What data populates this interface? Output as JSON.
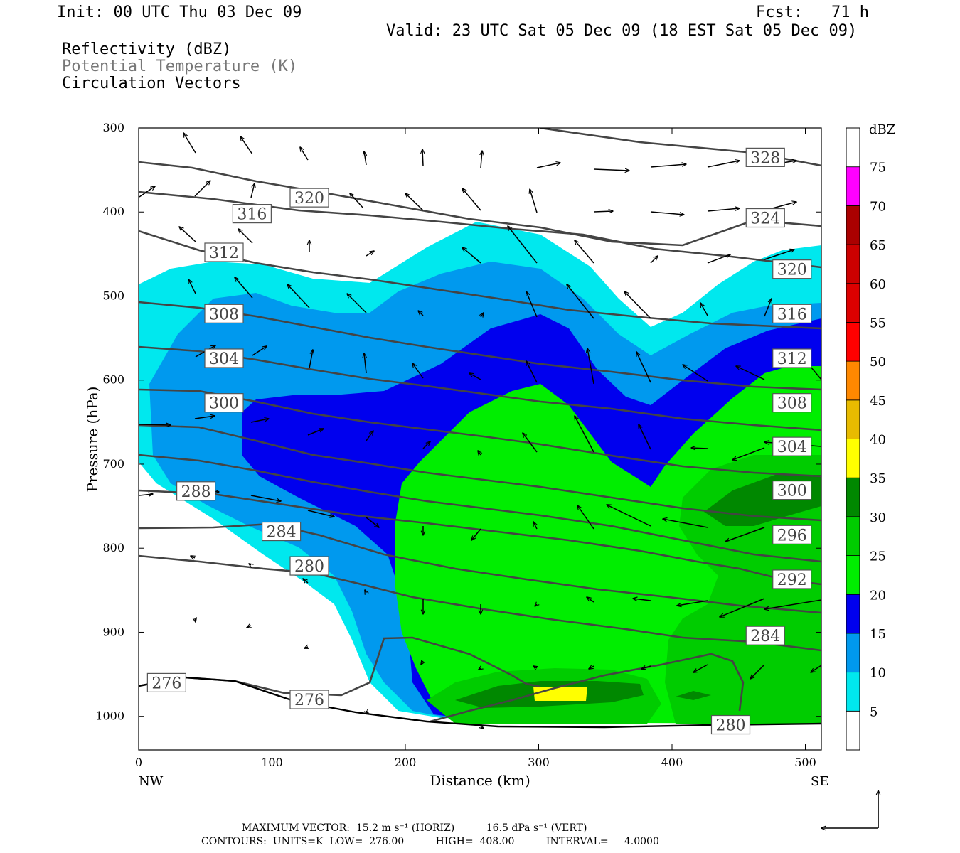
{
  "header": {
    "init": "Init: 00 UTC Thu 03 Dec 09",
    "fcst": "Fcst:   71 h",
    "valid": "Valid: 23 UTC Sat 05 Dec 09 (18 EST Sat 05 Dec 09)",
    "field1": "Reflectivity (dBZ)",
    "field2": "Potential Temperature (K)",
    "field3": "Circulation Vectors"
  },
  "footer": {
    "line1": "MAXIMUM VECTOR:  15.2 m s⁻¹ (HORIZ)          16.5 dPa s⁻¹ (VERT)",
    "line2": "CONTOURS:  UNITS=K  LOW=  276.00          HIGH=  408.00          INTERVAL=     4.0000"
  },
  "colors": {
    "refl_5": "#00e8ee",
    "refl_10": "#0099ee",
    "refl_15": "#0000ee",
    "refl_20": "#00ee00",
    "refl_25": "#00cc00",
    "refl_30": "#008800",
    "refl_35": "#ffff00",
    "refl_40": "#e8bb00",
    "refl_45": "#ff8800",
    "refl_50": "#ff0000",
    "refl_55": "#dd0000",
    "refl_60": "#cc0000",
    "refl_65": "#aa0000",
    "refl_70": "#ff00ff",
    "refl_75": "#9955cc",
    "theta_line": "#444444"
  },
  "chart_data": {
    "type": "contour_cross_section",
    "xlabel": "Distance (km)",
    "ylabel": "Pressure (hPa)",
    "xlim": [
      0,
      512
    ],
    "ylim": [
      1040,
      300
    ],
    "x_ticks": [
      0,
      100,
      200,
      300,
      400,
      500
    ],
    "y_ticks": [
      300,
      400,
      500,
      600,
      700,
      800,
      900,
      1000
    ],
    "x_end_labels": {
      "left": "NW",
      "right": "SE"
    },
    "colorbar": {
      "unit": "dBZ",
      "levels": [
        5,
        10,
        15,
        20,
        25,
        30,
        35,
        40,
        45,
        50,
        55,
        60,
        65,
        70,
        75
      ]
    },
    "theta_labels": [
      {
        "value": 328,
        "x": 470,
        "p": 335
      },
      {
        "value": 324,
        "x": 470,
        "p": 407
      },
      {
        "value": 320,
        "x": 128,
        "p": 383
      },
      {
        "value": 320,
        "x": 490,
        "p": 468
      },
      {
        "value": 316,
        "x": 85,
        "p": 402
      },
      {
        "value": 316,
        "x": 490,
        "p": 521
      },
      {
        "value": 312,
        "x": 64,
        "p": 448
      },
      {
        "value": 312,
        "x": 490,
        "p": 574
      },
      {
        "value": 308,
        "x": 64,
        "p": 521
      },
      {
        "value": 308,
        "x": 490,
        "p": 627
      },
      {
        "value": 304,
        "x": 64,
        "p": 574
      },
      {
        "value": 304,
        "x": 490,
        "p": 679
      },
      {
        "value": 300,
        "x": 64,
        "p": 627
      },
      {
        "value": 300,
        "x": 490,
        "p": 731
      },
      {
        "value": 296,
        "x": 490,
        "p": 784
      },
      {
        "value": 292,
        "x": 490,
        "p": 837
      },
      {
        "value": 288,
        "x": 43,
        "p": 732
      },
      {
        "value": 284,
        "x": 107,
        "p": 780
      },
      {
        "value": 284,
        "x": 470,
        "p": 904
      },
      {
        "value": 280,
        "x": 128,
        "p": 821
      },
      {
        "value": 280,
        "x": 444,
        "p": 1010
      },
      {
        "value": 276,
        "x": 21,
        "p": 960
      },
      {
        "value": 276,
        "x": 128,
        "p": 980
      }
    ]
  }
}
